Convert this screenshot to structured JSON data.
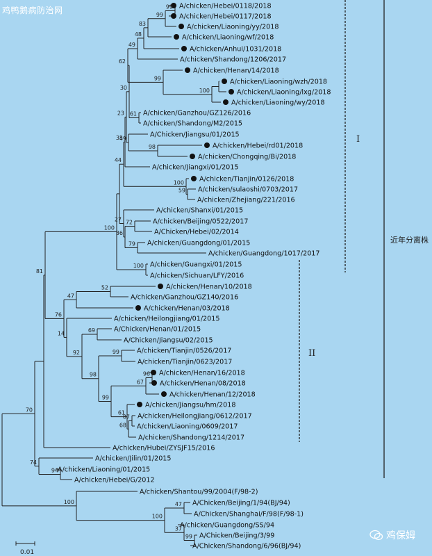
{
  "watermark": "鸡鸭鹅病防治网",
  "brand": "鸡保姆",
  "scale_bar_label": "0.01",
  "group_I_label": "I",
  "group_II_label": "II",
  "recent_label": "近年分离株",
  "colors": {
    "background": "#a9d6f1",
    "line": "#222222"
  },
  "taxa": [
    {
      "id": "t1",
      "label": "A/chicken/Hebei/0118/2018",
      "marked": true
    },
    {
      "id": "t2",
      "label": "A/chicken/Hebei/0117/2018",
      "marked": true
    },
    {
      "id": "t3",
      "label": "A/chicken/Liaoning/yy/2018",
      "marked": true
    },
    {
      "id": "t4",
      "label": "A/chicken/Liaoning/wf/2018",
      "marked": true
    },
    {
      "id": "t5",
      "label": "A/chicken/Anhui/1031/2018",
      "marked": true
    },
    {
      "id": "t6",
      "label": "A/chicken/Shandong/1206/2017",
      "marked": false
    },
    {
      "id": "t7",
      "label": "A/chicken/Henan/14/2018",
      "marked": true
    },
    {
      "id": "t8",
      "label": "A/chicken/Liaoning/wzh/2018",
      "marked": true
    },
    {
      "id": "t9",
      "label": "A/chicken/Liaoning/lxg/2018",
      "marked": true
    },
    {
      "id": "t10",
      "label": "A/chicken/Liaoning/wy/2018",
      "marked": true
    },
    {
      "id": "t11",
      "label": "A/chicken/Ganzhou/GZ126/2016",
      "marked": false
    },
    {
      "id": "t12",
      "label": "A/chicken/Shandong/M2/2015",
      "marked": false
    },
    {
      "id": "t13",
      "label": "A/Chicken/Jiangsu/01/2015",
      "marked": false
    },
    {
      "id": "t14",
      "label": "A/chicken/Hebei/rd01/2018",
      "marked": true
    },
    {
      "id": "t15",
      "label": "A/chicken/Chongqing/Bi/2018",
      "marked": true
    },
    {
      "id": "t16",
      "label": "A/chicken/Jiangxi/01/2015",
      "marked": false
    },
    {
      "id": "t17",
      "label": "A/chicken/Tianjin/0126/2018",
      "marked": true
    },
    {
      "id": "t18",
      "label": "A/chicken/sulaoshi/0703/2017",
      "marked": false
    },
    {
      "id": "t19",
      "label": "A/chicken/Zhejiang/221/2016",
      "marked": false
    },
    {
      "id": "t20",
      "label": "A/chicken/Shanxi/01/2015",
      "marked": false
    },
    {
      "id": "t21",
      "label": "A/chicken/Beijing/0522/2017",
      "marked": false
    },
    {
      "id": "t22",
      "label": "A/Chicken/Hebei/02/2014",
      "marked": false
    },
    {
      "id": "t23",
      "label": "A/chicken/Guangdong/01/2015",
      "marked": false
    },
    {
      "id": "t24",
      "label": "A/chicken/Guangdong/1017/2017",
      "marked": false
    },
    {
      "id": "t25",
      "label": "A/chicken/Guangxi/01/2015",
      "marked": false
    },
    {
      "id": "t26",
      "label": "A/chicken/Sichuan/LFY/2016",
      "marked": false
    },
    {
      "id": "t27",
      "label": "A/chicken/Henan/10/2018",
      "marked": true
    },
    {
      "id": "t28",
      "label": "A/chicken/Ganzhou/GZ140/2016",
      "marked": false
    },
    {
      "id": "t29",
      "label": "A/chicken/Henan/03/2018",
      "marked": true
    },
    {
      "id": "t30",
      "label": "A/chicken/Heilongjiang/01/2015",
      "marked": false
    },
    {
      "id": "t31",
      "label": "A/Chicken/Henan/01/2015",
      "marked": false
    },
    {
      "id": "t32",
      "label": "A/Chicken/Jiangsu/02/2015",
      "marked": false
    },
    {
      "id": "t33",
      "label": "A/chicken/Tianjin/0526/2017",
      "marked": false
    },
    {
      "id": "t34",
      "label": "A/chicken/Tianjin/0623/2017",
      "marked": false
    },
    {
      "id": "t35",
      "label": "A/chicken/Henan/16/2018",
      "marked": true
    },
    {
      "id": "t36",
      "label": "A/chicken/Henan/08/2018",
      "marked": true
    },
    {
      "id": "t37",
      "label": "A/chicken/Henan/12/2018",
      "marked": true
    },
    {
      "id": "t38",
      "label": "A/chicken/Jiangsu/hm/2018",
      "marked": true
    },
    {
      "id": "t39",
      "label": "A/chicken/Heilongjiang/0612/2017",
      "marked": false
    },
    {
      "id": "t40",
      "label": "A/chicken/Liaoning/0609/2017",
      "marked": false
    },
    {
      "id": "t41",
      "label": "A/chicken/Shandong/1214/2017",
      "marked": false
    },
    {
      "id": "t42",
      "label": "A/chicken/Hubei/ZYSJF15/2016",
      "marked": false
    },
    {
      "id": "t43",
      "label": "A/chicken/Jilin/01/2015",
      "marked": false
    },
    {
      "id": "t44",
      "label": "A/chicken/Liaoning/01/2015",
      "marked": false
    },
    {
      "id": "t45",
      "label": "A/chicken/Hebei/G/2012",
      "marked": false
    },
    {
      "id": "t46",
      "label": "A/chicken/Shantou/99/2004(F/98-2)",
      "marked": false
    },
    {
      "id": "t47",
      "label": "A/Chicken/Beijing/1/94(BJ/94)",
      "marked": false
    },
    {
      "id": "t48",
      "label": "A/Chicken/Shanghai/F/98(F/98-1)",
      "marked": false
    },
    {
      "id": "t49",
      "label": "A/chicken/Guangdong/SS/94",
      "marked": false
    },
    {
      "id": "t50",
      "label": "A/Chicken/Beijing/3/99",
      "marked": false
    },
    {
      "id": "t51",
      "label": "A/Chicken/Shandong/6/96(BJ/94)",
      "marked": false
    }
  ],
  "bootstrap": [
    {
      "id": "n_99a",
      "value": "99"
    },
    {
      "id": "n_99b",
      "value": "99"
    },
    {
      "id": "n_83",
      "value": "83"
    },
    {
      "id": "n_48",
      "value": "48"
    },
    {
      "id": "n_49",
      "value": "49"
    },
    {
      "id": "n_99c",
      "value": "99"
    },
    {
      "id": "n_100a",
      "value": "100"
    },
    {
      "id": "n_62",
      "value": "62"
    },
    {
      "id": "n_30",
      "value": "30"
    },
    {
      "id": "n_61",
      "value": "61"
    },
    {
      "id": "n_23",
      "value": "23"
    },
    {
      "id": "n_49b",
      "value": "49"
    },
    {
      "id": "n_98a",
      "value": "98"
    },
    {
      "id": "n_35",
      "value": "35"
    },
    {
      "id": "n_100b",
      "value": "100"
    },
    {
      "id": "n_59",
      "value": "59"
    },
    {
      "id": "n_44",
      "value": "44"
    },
    {
      "id": "n_72",
      "value": "72"
    },
    {
      "id": "n_27",
      "value": "27"
    },
    {
      "id": "n_100c",
      "value": "100"
    },
    {
      "id": "n_36",
      "value": "36"
    },
    {
      "id": "n_79",
      "value": "79"
    },
    {
      "id": "n_100d",
      "value": "100"
    },
    {
      "id": "n_81",
      "value": "81"
    },
    {
      "id": "n_52",
      "value": "52"
    },
    {
      "id": "n_47a",
      "value": "47"
    },
    {
      "id": "n_76",
      "value": "76"
    },
    {
      "id": "n_69",
      "value": "69"
    },
    {
      "id": "n_14",
      "value": "14"
    },
    {
      "id": "n_92",
      "value": "92"
    },
    {
      "id": "n_99d",
      "value": "99"
    },
    {
      "id": "n_67",
      "value": "67"
    },
    {
      "id": "n_96",
      "value": "96"
    },
    {
      "id": "n_98b",
      "value": "98"
    },
    {
      "id": "n_99e",
      "value": "99"
    },
    {
      "id": "n_61b",
      "value": "61"
    },
    {
      "id": "n_87",
      "value": "87"
    },
    {
      "id": "n_68",
      "value": "68"
    },
    {
      "id": "n_70",
      "value": "70"
    },
    {
      "id": "n_74",
      "value": "74"
    },
    {
      "id": "n_94",
      "value": "94"
    },
    {
      "id": "n_100e",
      "value": "100"
    },
    {
      "id": "n_47b",
      "value": "47"
    },
    {
      "id": "n_100f",
      "value": "100"
    },
    {
      "id": "n_37",
      "value": "37"
    },
    {
      "id": "n_99f",
      "value": "99"
    }
  ]
}
